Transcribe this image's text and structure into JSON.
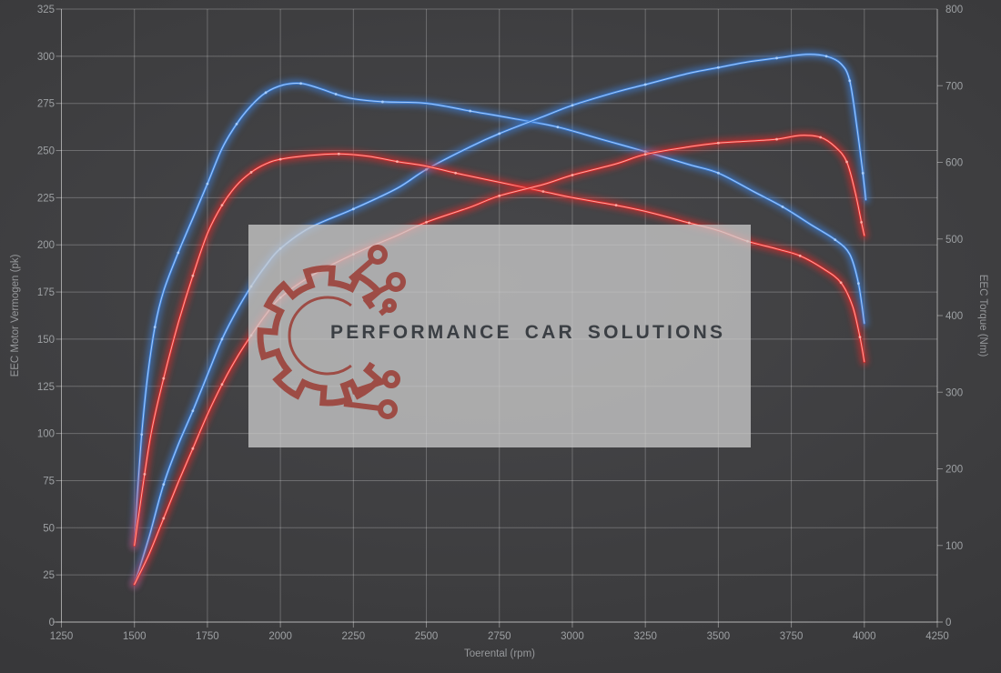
{
  "watermark": {
    "text": "PERFORMANCE CAR SOLUTIONS",
    "logo": "gear-circuit-icon",
    "colors": {
      "box": "rgba(205,205,205,0.75)",
      "logo": "#9c4038",
      "text": "#3b3f44"
    }
  },
  "chart_data": {
    "type": "line",
    "title": "",
    "xlabel": "Toerental (rpm)",
    "ylabel_left": "EEC Motor Vermogen (pk)",
    "ylabel_right": "EEC Torque (Nm)",
    "x_range": [
      1250,
      4250
    ],
    "x_tick_step": 250,
    "y_left_range": [
      0,
      325
    ],
    "y_left_tick_step": 25,
    "y_right_range": [
      0,
      800
    ],
    "y_right_tick_step": 100,
    "grid": true,
    "legend_position": "none",
    "series": [
      {
        "name": "torque-blue",
        "axis": "right",
        "unit": "Nm",
        "color": "#3c80da",
        "core_color": "#aed2ff",
        "points": [
          [
            1500,
            100
          ],
          [
            1510,
            165
          ],
          [
            1525,
            245
          ],
          [
            1545,
            320
          ],
          [
            1570,
            385
          ],
          [
            1600,
            432
          ],
          [
            1650,
            482
          ],
          [
            1700,
            527
          ],
          [
            1750,
            572
          ],
          [
            1800,
            618
          ],
          [
            1850,
            650
          ],
          [
            1900,
            674
          ],
          [
            1950,
            691
          ],
          [
            2010,
            701
          ],
          [
            2070,
            703
          ],
          [
            2130,
            697
          ],
          [
            2190,
            689
          ],
          [
            2250,
            683
          ],
          [
            2350,
            679
          ],
          [
            2500,
            677
          ],
          [
            2650,
            667
          ],
          [
            2800,
            657
          ],
          [
            2950,
            646
          ],
          [
            3100,
            630
          ],
          [
            3250,
            614
          ],
          [
            3400,
            597
          ],
          [
            3500,
            586
          ],
          [
            3620,
            562
          ],
          [
            3720,
            542
          ],
          [
            3820,
            518
          ],
          [
            3900,
            499
          ],
          [
            3950,
            480
          ],
          [
            3980,
            442
          ],
          [
            4000,
            390
          ]
        ]
      },
      {
        "name": "power-blue",
        "axis": "left",
        "unit": "pk",
        "color": "#3c80da",
        "core_color": "#aed2ff",
        "points": [
          [
            1500,
            20
          ],
          [
            1550,
            45
          ],
          [
            1600,
            73
          ],
          [
            1650,
            94
          ],
          [
            1700,
            112
          ],
          [
            1750,
            131
          ],
          [
            1800,
            150
          ],
          [
            1850,
            165
          ],
          [
            1900,
            178
          ],
          [
            1950,
            189
          ],
          [
            2000,
            198
          ],
          [
            2100,
            209
          ],
          [
            2250,
            219
          ],
          [
            2400,
            230
          ],
          [
            2500,
            240
          ],
          [
            2650,
            252
          ],
          [
            2750,
            259
          ],
          [
            2900,
            268
          ],
          [
            3000,
            274
          ],
          [
            3150,
            281
          ],
          [
            3250,
            285
          ],
          [
            3400,
            291
          ],
          [
            3500,
            294
          ],
          [
            3600,
            297
          ],
          [
            3700,
            299
          ],
          [
            3800,
            301
          ],
          [
            3870,
            300
          ],
          [
            3920,
            296
          ],
          [
            3950,
            287
          ],
          [
            3975,
            262
          ],
          [
            3995,
            238
          ],
          [
            4005,
            224
          ]
        ]
      },
      {
        "name": "torque-red",
        "axis": "right",
        "unit": "Nm",
        "color": "#e02a2a",
        "core_color": "#ffb4ac",
        "points": [
          [
            1500,
            100
          ],
          [
            1515,
            140
          ],
          [
            1535,
            193
          ],
          [
            1560,
            252
          ],
          [
            1600,
            318
          ],
          [
            1650,
            390
          ],
          [
            1700,
            452
          ],
          [
            1750,
            507
          ],
          [
            1800,
            544
          ],
          [
            1850,
            570
          ],
          [
            1900,
            587
          ],
          [
            1950,
            598
          ],
          [
            2000,
            604
          ],
          [
            2100,
            609
          ],
          [
            2200,
            611
          ],
          [
            2300,
            608
          ],
          [
            2400,
            601
          ],
          [
            2500,
            595
          ],
          [
            2600,
            586
          ],
          [
            2750,
            574
          ],
          [
            2900,
            562
          ],
          [
            3000,
            554
          ],
          [
            3150,
            544
          ],
          [
            3250,
            536
          ],
          [
            3400,
            521
          ],
          [
            3500,
            511
          ],
          [
            3600,
            497
          ],
          [
            3700,
            487
          ],
          [
            3780,
            478
          ],
          [
            3860,
            461
          ],
          [
            3920,
            443
          ],
          [
            3960,
            412
          ],
          [
            3985,
            372
          ],
          [
            4000,
            340
          ]
        ]
      },
      {
        "name": "power-red",
        "axis": "left",
        "unit": "pk",
        "color": "#e02a2a",
        "core_color": "#ffb4ac",
        "points": [
          [
            1500,
            20
          ],
          [
            1550,
            36
          ],
          [
            1600,
            55
          ],
          [
            1650,
            74
          ],
          [
            1700,
            92
          ],
          [
            1750,
            110
          ],
          [
            1800,
            126
          ],
          [
            1850,
            140
          ],
          [
            1900,
            152
          ],
          [
            1950,
            163
          ],
          [
            2000,
            172
          ],
          [
            2100,
            183
          ],
          [
            2250,
            195
          ],
          [
            2400,
            205
          ],
          [
            2500,
            212
          ],
          [
            2650,
            220
          ],
          [
            2750,
            226
          ],
          [
            2900,
            232
          ],
          [
            3000,
            237
          ],
          [
            3150,
            243
          ],
          [
            3250,
            248
          ],
          [
            3400,
            252
          ],
          [
            3500,
            254
          ],
          [
            3600,
            255
          ],
          [
            3700,
            256
          ],
          [
            3780,
            258
          ],
          [
            3850,
            257
          ],
          [
            3900,
            252
          ],
          [
            3940,
            244
          ],
          [
            3970,
            227
          ],
          [
            3990,
            212
          ],
          [
            4000,
            205
          ]
        ]
      }
    ]
  }
}
